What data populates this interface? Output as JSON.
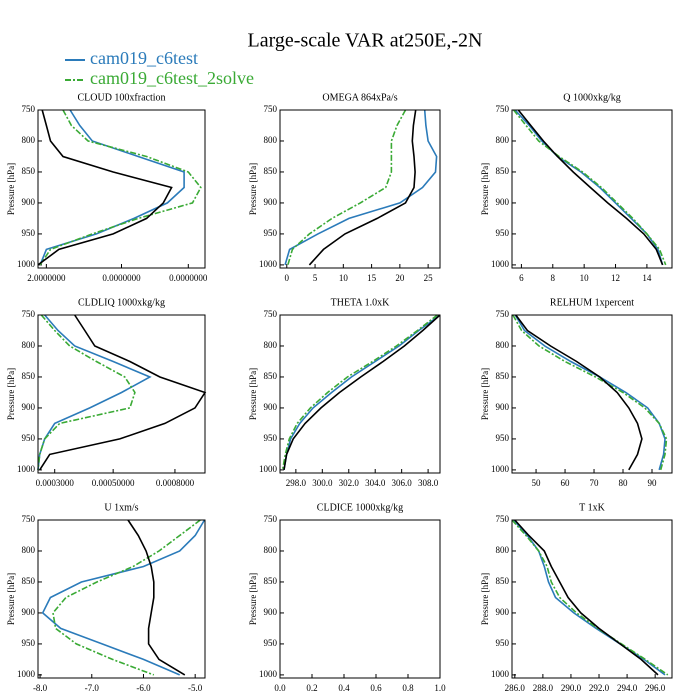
{
  "title": "Large-scale VAR at250E,-2N",
  "chart_data": [
    {
      "type": "profile",
      "title": "CLOUD  100xfraction",
      "ylabel": "Pressure [hPa]",
      "y": [
        750,
        775,
        800,
        825,
        850,
        875,
        900,
        925,
        950,
        975,
        1000
      ],
      "ylim": [
        750,
        1005
      ],
      "yticks": [
        750,
        800,
        850,
        900,
        950,
        1000
      ],
      "xlim": [
        0,
        40
      ],
      "xticks": [
        {
          "value": 2,
          "label": "2.0000000"
        },
        {
          "value": 20,
          "label": "0.0000000"
        },
        {
          "value": 36,
          "label": "0.0000000"
        }
      ],
      "series": [
        {
          "name": "cam019_c6test",
          "color": "#2b7bba",
          "values": [
            7.7,
            10,
            13,
            24,
            35,
            35,
            31,
            23,
            14,
            2,
            0.5
          ]
        },
        {
          "name": "cam019_c6test_2solve",
          "color": "#3aaa35",
          "dash": "6,2,2,2",
          "values": [
            6,
            8,
            12,
            26,
            36,
            39,
            37,
            24,
            13,
            3,
            0.5
          ]
        },
        {
          "color": "#000000",
          "values": [
            1,
            2,
            3,
            6,
            18,
            32,
            30,
            26,
            18,
            5,
            0
          ]
        }
      ]
    },
    {
      "type": "profile",
      "title": "OMEGA  864xPa/s",
      "ylabel": "Pressure [hPa]",
      "y": [
        750,
        775,
        800,
        825,
        850,
        875,
        900,
        925,
        950,
        975,
        1000
      ],
      "ylim": [
        750,
        1005
      ],
      "yticks": [
        750,
        800,
        850,
        900,
        950,
        1000
      ],
      "xlim": [
        -1.2,
        27.1
      ],
      "xticks": [
        0,
        5,
        10,
        15,
        20,
        25
      ],
      "series": [
        {
          "name": "cam019_c6test",
          "color": "#2b7bba",
          "values": [
            24.4,
            24.6,
            25,
            26.5,
            26.3,
            24,
            20,
            11,
            5.5,
            0.5,
            -0.3
          ]
        },
        {
          "name": "cam019_c6test_2solve",
          "color": "#3aaa35",
          "dash": "6,2,2,2",
          "values": [
            21,
            19.5,
            18.5,
            18.5,
            18.5,
            17.5,
            13,
            8,
            4,
            1,
            0.2
          ]
        },
        {
          "color": "#000000",
          "values": [
            22.8,
            22.4,
            22.2,
            22.5,
            22.7,
            22.5,
            21,
            16,
            10.3,
            6.5,
            4
          ]
        }
      ]
    },
    {
      "type": "profile",
      "title": "Q  1000xkg/kg",
      "ylabel": "Pressure [hPa]",
      "y": [
        750,
        775,
        800,
        825,
        850,
        875,
        900,
        925,
        950,
        975,
        1000
      ],
      "ylim": [
        750,
        1005
      ],
      "yticks": [
        750,
        800,
        850,
        900,
        950,
        1000
      ],
      "xlim": [
        5.4,
        15.6
      ],
      "xticks": [
        6,
        8,
        10,
        12,
        14
      ],
      "series": [
        {
          "name": "cam019_c6test",
          "color": "#2b7bba",
          "values": [
            5.6,
            6.5,
            7.3,
            8.3,
            9.8,
            11,
            12,
            13,
            14,
            14.7,
            15
          ]
        },
        {
          "name": "cam019_c6test_2solve",
          "color": "#3aaa35",
          "dash": "6,2,2,2",
          "values": [
            5.5,
            6.3,
            7.1,
            8.4,
            9.9,
            11.1,
            12.1,
            13.1,
            14,
            14.8,
            15.2
          ]
        },
        {
          "color": "#000000",
          "values": [
            5.8,
            6.6,
            7.4,
            8.3,
            9.3,
            10.4,
            11.5,
            12.7,
            13.8,
            14.6,
            15
          ]
        }
      ]
    },
    {
      "type": "profile",
      "title": "CLDLIQ  1000xkg/kg",
      "ylabel": "Pressure [hPa]",
      "y": [
        750,
        775,
        800,
        825,
        850,
        875,
        900,
        925,
        950,
        975,
        1000
      ],
      "ylim": [
        750,
        1005
      ],
      "yticks": [
        750,
        800,
        850,
        900,
        950,
        1000
      ],
      "xlim": [
        0,
        100
      ],
      "xticks": [
        {
          "value": 10,
          "label": "0.0003000"
        },
        {
          "value": 45,
          "label": "0.00050000"
        },
        {
          "value": 82,
          "label": "0.0008000"
        }
      ],
      "series": [
        {
          "name": "cam019_c6test",
          "color": "#2b7bba",
          "values": [
            4,
            12,
            22,
            45,
            67,
            50,
            31,
            10,
            4,
            1,
            0
          ]
        },
        {
          "name": "cam019_c6test_2solve",
          "color": "#3aaa35",
          "dash": "6,2,2,2",
          "values": [
            2,
            10,
            19,
            35,
            52,
            58,
            55,
            13,
            4,
            1,
            0
          ]
        },
        {
          "color": "#000000",
          "values": [
            22,
            28,
            34,
            55,
            73,
            100,
            94,
            76,
            49,
            7,
            1
          ]
        }
      ]
    },
    {
      "type": "profile",
      "title": "THETA  1.0xK",
      "ylabel": "Pressure [hPa]",
      "y": [
        750,
        775,
        800,
        825,
        850,
        875,
        900,
        925,
        950,
        975,
        1000
      ],
      "ylim": [
        750,
        1005
      ],
      "yticks": [
        750,
        800,
        850,
        900,
        950,
        1000
      ],
      "xlim": [
        296.8,
        308.9
      ],
      "xticks": [
        {
          "value": 298,
          "label": "298.0"
        },
        {
          "value": 300,
          "label": "300.0"
        },
        {
          "value": 302,
          "label": "302.0"
        },
        {
          "value": 304,
          "label": "304.0"
        },
        {
          "value": 306,
          "label": "306.0"
        },
        {
          "value": 308,
          "label": "308.0"
        }
      ],
      "series": [
        {
          "name": "cam019_c6test",
          "color": "#2b7bba",
          "values": [
            308.9,
            307.3,
            305.8,
            304,
            302.2,
            300.7,
            299.3,
            298.3,
            297.6,
            297.3,
            297.1
          ]
        },
        {
          "name": "cam019_c6test_2solve",
          "color": "#3aaa35",
          "dash": "6,2,2,2",
          "values": [
            308.7,
            307.2,
            305.6,
            303.8,
            301.9,
            300.4,
            299.1,
            298.1,
            297.5,
            297.2,
            297
          ]
        },
        {
          "color": "#000000",
          "values": [
            308.9,
            307.6,
            306.2,
            304.6,
            302.9,
            301.3,
            299.9,
            298.7,
            297.8,
            297.3,
            297.1
          ]
        }
      ]
    },
    {
      "type": "profile",
      "title": "RELHUM  1xpercent",
      "ylabel": "Pressure [hPa]",
      "y": [
        750,
        775,
        800,
        825,
        850,
        875,
        900,
        925,
        950,
        975,
        1000
      ],
      "ylim": [
        750,
        1005
      ],
      "yticks": [
        750,
        800,
        850,
        900,
        950,
        1000
      ],
      "xlim": [
        41.7,
        96.9
      ],
      "xticks": [
        50,
        60,
        70,
        80,
        90
      ],
      "series": [
        {
          "name": "cam019_c6test",
          "color": "#2b7bba",
          "values": [
            42.8,
            46,
            53,
            62,
            72,
            81,
            88.5,
            92.5,
            94.5,
            94,
            92.5
          ]
        },
        {
          "name": "cam019_c6test_2solve",
          "color": "#3aaa35",
          "dash": "6,2,2,2",
          "values": [
            42,
            45,
            51,
            60,
            70.5,
            80,
            87.5,
            92.5,
            95,
            94.5,
            93
          ]
        },
        {
          "color": "#000000",
          "values": [
            43,
            47,
            55,
            64,
            72,
            78,
            82,
            85,
            86.5,
            85,
            82
          ]
        }
      ]
    },
    {
      "type": "profile",
      "title": "U  1xm/s",
      "ylabel": "Pressure [hPa]",
      "y": [
        750,
        775,
        800,
        825,
        850,
        875,
        900,
        925,
        950,
        975,
        1000
      ],
      "ylim": [
        750,
        1005
      ],
      "yticks": [
        750,
        800,
        850,
        900,
        950,
        1000
      ],
      "xlim": [
        -8.04,
        -4.81
      ],
      "xticks": [
        {
          "value": -8,
          "label": "-8.0"
        },
        {
          "value": -7,
          "label": "-7.0"
        },
        {
          "value": -6,
          "label": "-6.0"
        },
        {
          "value": -5,
          "label": "-5.0"
        }
      ],
      "series": [
        {
          "name": "cam019_c6test",
          "color": "#2b7bba",
          "values": [
            -4.82,
            -5.0,
            -5.3,
            -6.0,
            -7.2,
            -7.8,
            -7.95,
            -7.6,
            -6.8,
            -6.0,
            -5.3
          ]
        },
        {
          "name": "cam019_c6test_2solve",
          "color": "#3aaa35",
          "dash": "6,2,2,2",
          "values": [
            -4.9,
            -5.3,
            -5.7,
            -6.2,
            -6.9,
            -7.5,
            -7.75,
            -7.7,
            -7.3,
            -6.6,
            -5.8
          ]
        },
        {
          "color": "#000000",
          "values": [
            -6.3,
            -6.1,
            -5.95,
            -5.85,
            -5.8,
            -5.8,
            -5.85,
            -5.9,
            -5.9,
            -5.7,
            -5.2
          ]
        }
      ]
    },
    {
      "type": "profile",
      "title": "CLDICE  1000xkg/kg",
      "ylabel": "Pressure [hPa]",
      "y": [
        750,
        775,
        800,
        825,
        850,
        875,
        900,
        925,
        950,
        975,
        1000
      ],
      "ylim": [
        750,
        1005
      ],
      "yticks": [
        750,
        800,
        850,
        900,
        950,
        1000
      ],
      "xlim": [
        0,
        1
      ],
      "xticks": [
        {
          "value": 0,
          "label": "0.0"
        },
        {
          "value": 0.2,
          "label": "0.2"
        },
        {
          "value": 0.4,
          "label": "0.4"
        },
        {
          "value": 0.6,
          "label": "0.6"
        },
        {
          "value": 0.8,
          "label": "0.8"
        },
        {
          "value": 1,
          "label": "1.0"
        }
      ],
      "series": []
    },
    {
      "type": "profile",
      "title": "T  1xK",
      "ylabel": "Pressure [hPa]",
      "y": [
        750,
        775,
        800,
        825,
        850,
        875,
        900,
        925,
        950,
        975,
        1000
      ],
      "ylim": [
        750,
        1005
      ],
      "yticks": [
        750,
        800,
        850,
        900,
        950,
        1000
      ],
      "xlim": [
        285.8,
        297.2
      ],
      "xticks": [
        {
          "value": 286,
          "label": "286.0"
        },
        {
          "value": 288,
          "label": "288.0"
        },
        {
          "value": 290,
          "label": "290.0"
        },
        {
          "value": 292,
          "label": "292.0"
        },
        {
          "value": 294,
          "label": "294.0"
        },
        {
          "value": 296,
          "label": "296.0"
        }
      ],
      "series": [
        {
          "name": "cam019_c6test",
          "color": "#2b7bba",
          "values": [
            285.9,
            286.9,
            287.7,
            288.1,
            288.4,
            288.9,
            290.2,
            291.8,
            293.5,
            295.2,
            296.7
          ]
        },
        {
          "name": "cam019_c6test_2solve",
          "color": "#3aaa35",
          "dash": "6,2,2,2",
          "values": [
            285.8,
            286.8,
            287.7,
            288.3,
            288.6,
            289.2,
            290.4,
            291.9,
            293.6,
            295.3,
            296.9
          ]
        },
        {
          "color": "#000000",
          "values": [
            286,
            287,
            288.1,
            288.6,
            289.2,
            289.8,
            290.7,
            292,
            293.5,
            295,
            296.2
          ]
        }
      ]
    }
  ]
}
